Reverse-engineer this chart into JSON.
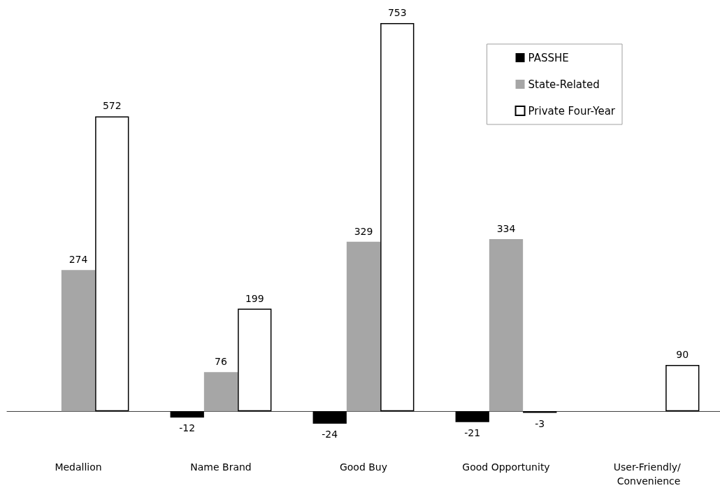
{
  "chart_data": {
    "type": "bar",
    "categories": [
      "Medallion",
      "Name Brand",
      "Good Buy",
      "Good Opportunity",
      "User-Friendly/ Convenience"
    ],
    "series": [
      {
        "name": "PASSHE",
        "color": "#000000",
        "values": [
          null,
          -12,
          -24,
          -21,
          null
        ]
      },
      {
        "name": "State-Related",
        "color": "#a6a6a6",
        "values": [
          274,
          76,
          329,
          334,
          null
        ]
      },
      {
        "name": "Private Four-Year",
        "color": "#ffffff",
        "values": [
          572,
          199,
          753,
          -3,
          90
        ]
      }
    ],
    "data_labels": true,
    "legend": "top right"
  }
}
